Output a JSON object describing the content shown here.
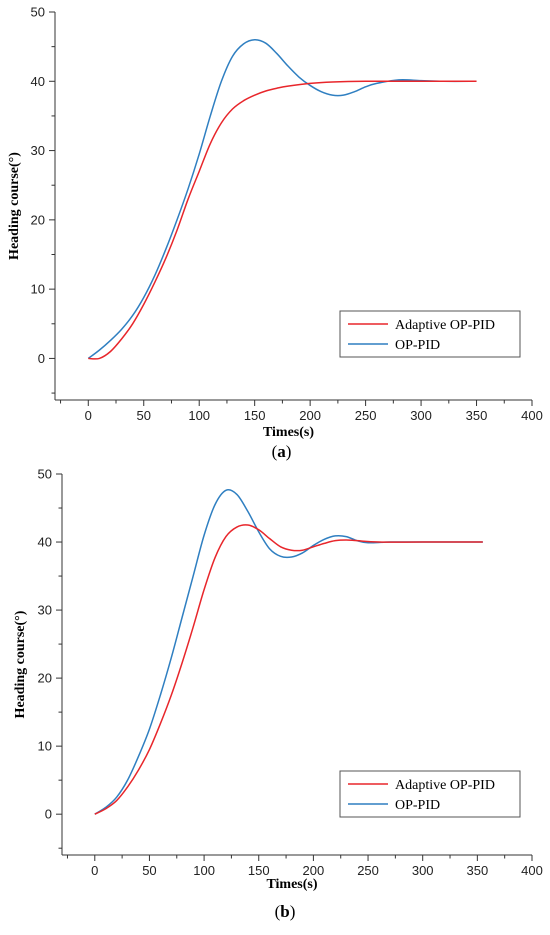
{
  "chart_data": [
    {
      "type": "line",
      "panel_prefix": "(",
      "panel_letter": "a",
      "panel_suffix": ")",
      "xlabel": "Times(s)",
      "ylabel": "Heading course(°)",
      "xlim": [
        -30,
        400
      ],
      "ylim": [
        -6,
        50
      ],
      "xticks": [
        0,
        50,
        100,
        150,
        200,
        250,
        300,
        350,
        400
      ],
      "yticks": [
        0,
        10,
        20,
        30,
        40,
        50
      ],
      "legend_position": "bottom-right",
      "series": [
        {
          "name": "Adaptive OP-PID",
          "color": "#e8262b",
          "points": [
            [
              0,
              0
            ],
            [
              10,
              0
            ],
            [
              20,
              1
            ],
            [
              30,
              2.8
            ],
            [
              40,
              5
            ],
            [
              50,
              7.8
            ],
            [
              60,
              11
            ],
            [
              70,
              14.5
            ],
            [
              80,
              18.5
            ],
            [
              90,
              23
            ],
            [
              100,
              27
            ],
            [
              110,
              31
            ],
            [
              120,
              34
            ],
            [
              130,
              36
            ],
            [
              140,
              37.2
            ],
            [
              150,
              38
            ],
            [
              160,
              38.6
            ],
            [
              170,
              39
            ],
            [
              180,
              39.3
            ],
            [
              200,
              39.7
            ],
            [
              220,
              39.9
            ],
            [
              250,
              40
            ],
            [
              300,
              40
            ],
            [
              350,
              40
            ]
          ]
        },
        {
          "name": "OP-PID",
          "color": "#2f7fc1",
          "points": [
            [
              0,
              0
            ],
            [
              10,
              1.2
            ],
            [
              20,
              2.6
            ],
            [
              30,
              4.2
            ],
            [
              40,
              6.2
            ],
            [
              50,
              8.8
            ],
            [
              60,
              12
            ],
            [
              70,
              15.8
            ],
            [
              80,
              20
            ],
            [
              90,
              24.5
            ],
            [
              100,
              29.5
            ],
            [
              110,
              35
            ],
            [
              120,
              40
            ],
            [
              130,
              43.6
            ],
            [
              140,
              45.4
            ],
            [
              150,
              46
            ],
            [
              160,
              45.5
            ],
            [
              170,
              44
            ],
            [
              180,
              42.2
            ],
            [
              190,
              40.6
            ],
            [
              200,
              39.4
            ],
            [
              210,
              38.5
            ],
            [
              220,
              38
            ],
            [
              230,
              38
            ],
            [
              240,
              38.5
            ],
            [
              250,
              39.2
            ],
            [
              260,
              39.7
            ],
            [
              280,
              40.2
            ],
            [
              300,
              40.1
            ],
            [
              320,
              40
            ],
            [
              350,
              40
            ]
          ]
        }
      ]
    },
    {
      "type": "line",
      "panel_prefix": "(",
      "panel_letter": "b",
      "panel_suffix": ")",
      "xlabel": "Times(s)",
      "ylabel": "Heading course(°)",
      "xlim": [
        -30,
        400
      ],
      "ylim": [
        -6,
        50
      ],
      "xticks": [
        0,
        50,
        100,
        150,
        200,
        250,
        300,
        350,
        400
      ],
      "yticks": [
        0,
        10,
        20,
        30,
        40,
        50
      ],
      "legend_position": "bottom-right",
      "series": [
        {
          "name": "Adaptive OP-PID",
          "color": "#e8262b",
          "points": [
            [
              0,
              0
            ],
            [
              10,
              0.8
            ],
            [
              20,
              2
            ],
            [
              30,
              4
            ],
            [
              40,
              6.5
            ],
            [
              50,
              9.5
            ],
            [
              60,
              13.3
            ],
            [
              70,
              17.5
            ],
            [
              80,
              22.3
            ],
            [
              90,
              27.5
            ],
            [
              100,
              33
            ],
            [
              110,
              37.7
            ],
            [
              120,
              40.8
            ],
            [
              130,
              42.2
            ],
            [
              140,
              42.5
            ],
            [
              150,
              41.8
            ],
            [
              160,
              40.5
            ],
            [
              170,
              39.3
            ],
            [
              180,
              38.8
            ],
            [
              190,
              38.8
            ],
            [
              200,
              39.3
            ],
            [
              210,
              39.8
            ],
            [
              220,
              40.2
            ],
            [
              230,
              40.3
            ],
            [
              240,
              40.2
            ],
            [
              260,
              40
            ],
            [
              300,
              40
            ],
            [
              355,
              40
            ]
          ]
        },
        {
          "name": "OP-PID",
          "color": "#2f7fc1",
          "points": [
            [
              0,
              0
            ],
            [
              10,
              1
            ],
            [
              20,
              2.5
            ],
            [
              30,
              5
            ],
            [
              40,
              8.5
            ],
            [
              50,
              12.5
            ],
            [
              60,
              17.5
            ],
            [
              70,
              23
            ],
            [
              80,
              29
            ],
            [
              90,
              35
            ],
            [
              100,
              41
            ],
            [
              110,
              45.5
            ],
            [
              120,
              47.6
            ],
            [
              130,
              47
            ],
            [
              140,
              44.5
            ],
            [
              150,
              41.5
            ],
            [
              160,
              39
            ],
            [
              170,
              37.9
            ],
            [
              180,
              37.8
            ],
            [
              190,
              38.4
            ],
            [
              200,
              39.5
            ],
            [
              210,
              40.4
            ],
            [
              220,
              40.9
            ],
            [
              230,
              40.8
            ],
            [
              240,
              40.2
            ],
            [
              250,
              39.9
            ],
            [
              270,
              40
            ],
            [
              300,
              40
            ],
            [
              355,
              40
            ]
          ]
        }
      ]
    }
  ]
}
